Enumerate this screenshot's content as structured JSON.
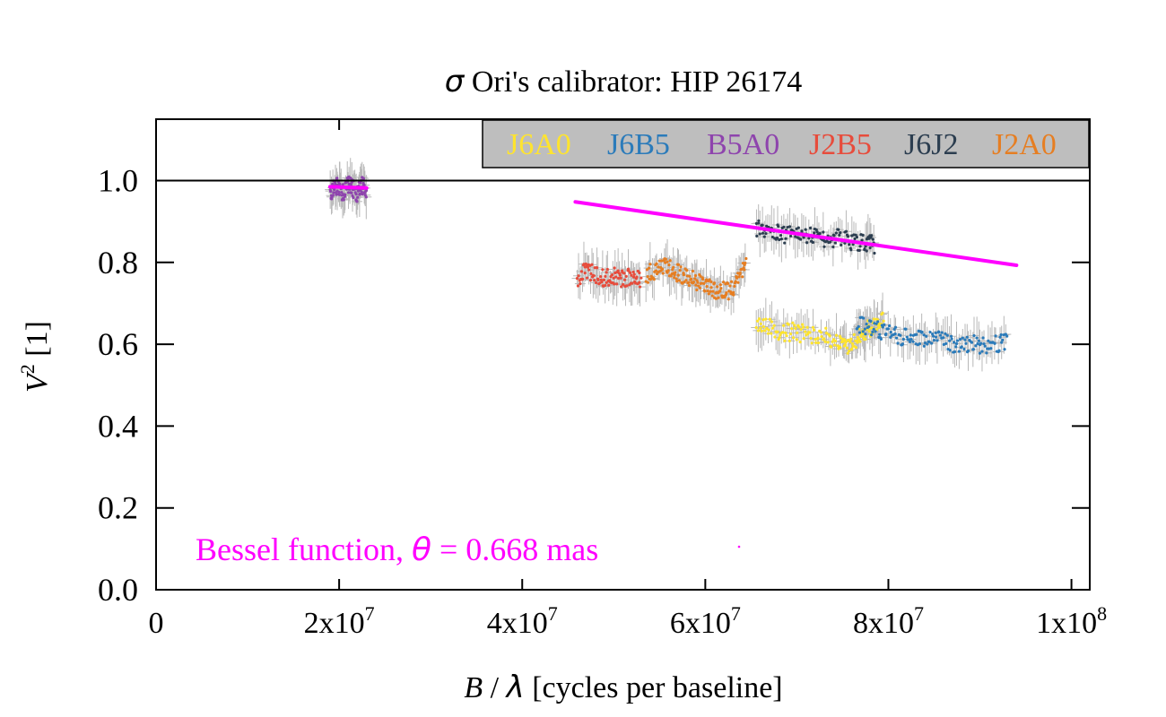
{
  "chart_data": {
    "type": "scatter",
    "title_symbol": "σ",
    "title_text": " Ori's calibrator: HIP 26174",
    "xlabel_var": "B",
    "xlabel_sep": " / ",
    "xlabel_symbol": "λ",
    "xlabel_rest": " [cycles per baseline]",
    "ylabel_var": "V",
    "ylabel_sup": "2",
    "ylabel_rest": " [1]",
    "xlim": [
      0,
      102000000
    ],
    "ylim": [
      0,
      1.15
    ],
    "x_ticks": [
      {
        "value": 0,
        "label": "0"
      },
      {
        "value": 20000000,
        "base": "2x10",
        "exp": "7"
      },
      {
        "value": 40000000,
        "base": "4x10",
        "exp": "7"
      },
      {
        "value": 60000000,
        "base": "6x10",
        "exp": "7"
      },
      {
        "value": 80000000,
        "base": "8x10",
        "exp": "7"
      },
      {
        "value": 100000000,
        "base": "1x10",
        "exp": "8"
      }
    ],
    "y_ticks": [
      {
        "value": 0,
        "label": "0.0"
      },
      {
        "value": 0.2,
        "label": "0.2"
      },
      {
        "value": 0.4,
        "label": "0.4"
      },
      {
        "value": 0.6,
        "label": "0.6"
      },
      {
        "value": 0.8,
        "label": "0.8"
      },
      {
        "value": 1.0,
        "label": "1.0"
      }
    ],
    "reference_line_y": 1.0,
    "grid": false,
    "legend_position": "top-right",
    "legend_bg": "#bebebe",
    "error_bar_color": "#b8b8b8",
    "series": [
      {
        "name": "J6A0",
        "color": "#ffe42e",
        "points": [
          [
            65500000,
            0.65
          ],
          [
            67000000,
            0.64
          ],
          [
            68500000,
            0.63
          ],
          [
            70000000,
            0.63
          ],
          [
            71500000,
            0.62
          ],
          [
            73000000,
            0.62
          ],
          [
            74500000,
            0.6
          ],
          [
            75500000,
            0.59
          ],
          [
            76500000,
            0.61
          ],
          [
            77500000,
            0.63
          ],
          [
            78500000,
            0.65
          ],
          [
            79500000,
            0.67
          ]
        ]
      },
      {
        "name": "J6B5",
        "color": "#2b7bba",
        "points": [
          [
            76500000,
            0.65
          ],
          [
            78000000,
            0.64
          ],
          [
            79500000,
            0.63
          ],
          [
            81000000,
            0.62
          ],
          [
            82500000,
            0.62
          ],
          [
            84000000,
            0.61
          ],
          [
            85500000,
            0.61
          ],
          [
            87000000,
            0.6
          ],
          [
            88500000,
            0.6
          ],
          [
            90000000,
            0.6
          ],
          [
            91500000,
            0.6
          ],
          [
            93000000,
            0.61
          ]
        ]
      },
      {
        "name": "B5A0",
        "color": "#8e44ad",
        "points": [
          [
            19000000,
            0.97
          ],
          [
            19500000,
            0.99
          ],
          [
            20000000,
            0.98
          ],
          [
            20500000,
            0.97
          ],
          [
            21000000,
            0.99
          ],
          [
            21500000,
            0.98
          ],
          [
            22000000,
            0.97
          ],
          [
            22500000,
            0.99
          ],
          [
            23000000,
            0.98
          ]
        ]
      },
      {
        "name": "J2B5",
        "color": "#e74c3c",
        "points": [
          [
            46000000,
            0.76
          ],
          [
            47000000,
            0.78
          ],
          [
            48000000,
            0.77
          ],
          [
            49000000,
            0.76
          ],
          [
            50000000,
            0.77
          ],
          [
            51000000,
            0.76
          ],
          [
            52000000,
            0.77
          ],
          [
            53000000,
            0.76
          ]
        ]
      },
      {
        "name": "J6J2",
        "color": "#2c3e50",
        "points": [
          [
            65500000,
            0.88
          ],
          [
            67000000,
            0.88
          ],
          [
            68500000,
            0.87
          ],
          [
            70000000,
            0.87
          ],
          [
            71500000,
            0.87
          ],
          [
            73000000,
            0.86
          ],
          [
            74500000,
            0.86
          ],
          [
            76000000,
            0.85
          ],
          [
            77500000,
            0.85
          ],
          [
            78500000,
            0.84
          ]
        ]
      },
      {
        "name": "J2A0",
        "color": "#e67e22",
        "points": [
          [
            53500000,
            0.77
          ],
          [
            54500000,
            0.78
          ],
          [
            55500000,
            0.79
          ],
          [
            56500000,
            0.78
          ],
          [
            57500000,
            0.77
          ],
          [
            58500000,
            0.76
          ],
          [
            59500000,
            0.75
          ],
          [
            60500000,
            0.74
          ],
          [
            61500000,
            0.73
          ],
          [
            62500000,
            0.73
          ],
          [
            63500000,
            0.75
          ],
          [
            64500000,
            0.8
          ]
        ]
      }
    ],
    "fit_line": {
      "color": "#ff00ff",
      "segments": [
        [
          [
            19000000,
            0.985
          ],
          [
            23000000,
            0.982
          ]
        ],
        [
          [
            45800000,
            0.948
          ],
          [
            94000000,
            0.793
          ]
        ]
      ]
    },
    "annotation": {
      "prefix": "Bessel function, ",
      "symbol": "θ",
      "suffix": " = 0.668 mas",
      "color": "#ff00ff"
    }
  }
}
